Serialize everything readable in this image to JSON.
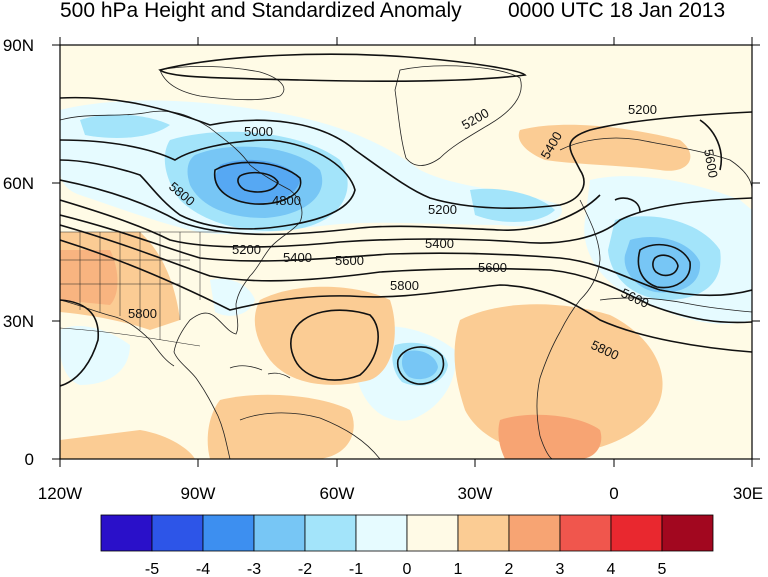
{
  "titles": {
    "left": "500 hPa Height and Standardized Anomaly",
    "right": "0000 UTC 18 Jan 2013"
  },
  "axes": {
    "lat_labels": [
      "90N",
      "60N",
      "30N",
      "0"
    ],
    "lon_labels": [
      "120W",
      "90W",
      "60W",
      "30W",
      "0",
      "30E"
    ],
    "lat_range": [
      0,
      90
    ],
    "lon_range": [
      -120,
      30
    ]
  },
  "contour_labels": [
    "5000",
    "4800",
    "5200",
    "5400",
    "5600",
    "5800",
    "5200",
    "5400",
    "5600",
    "5800",
    "5800",
    "5600",
    "5200",
    "5200",
    "5400",
    "5600"
  ],
  "colorbar": {
    "colors": [
      "#2a10c9",
      "#2d55e8",
      "#3d8ff0",
      "#77c6f5",
      "#a3e4fa",
      "#e6fbff",
      "#fffae6",
      "#fbcc94",
      "#f7a473",
      "#f0564d",
      "#e9282f",
      "#a2071f"
    ],
    "labels": [
      "-5",
      "-4",
      "-3",
      "-2",
      "-1",
      "0",
      "1",
      "2",
      "3",
      "4",
      "5"
    ]
  },
  "palette": {
    "ocean": "#fffbe6",
    "coast": "#222222",
    "contour": "#111111"
  }
}
